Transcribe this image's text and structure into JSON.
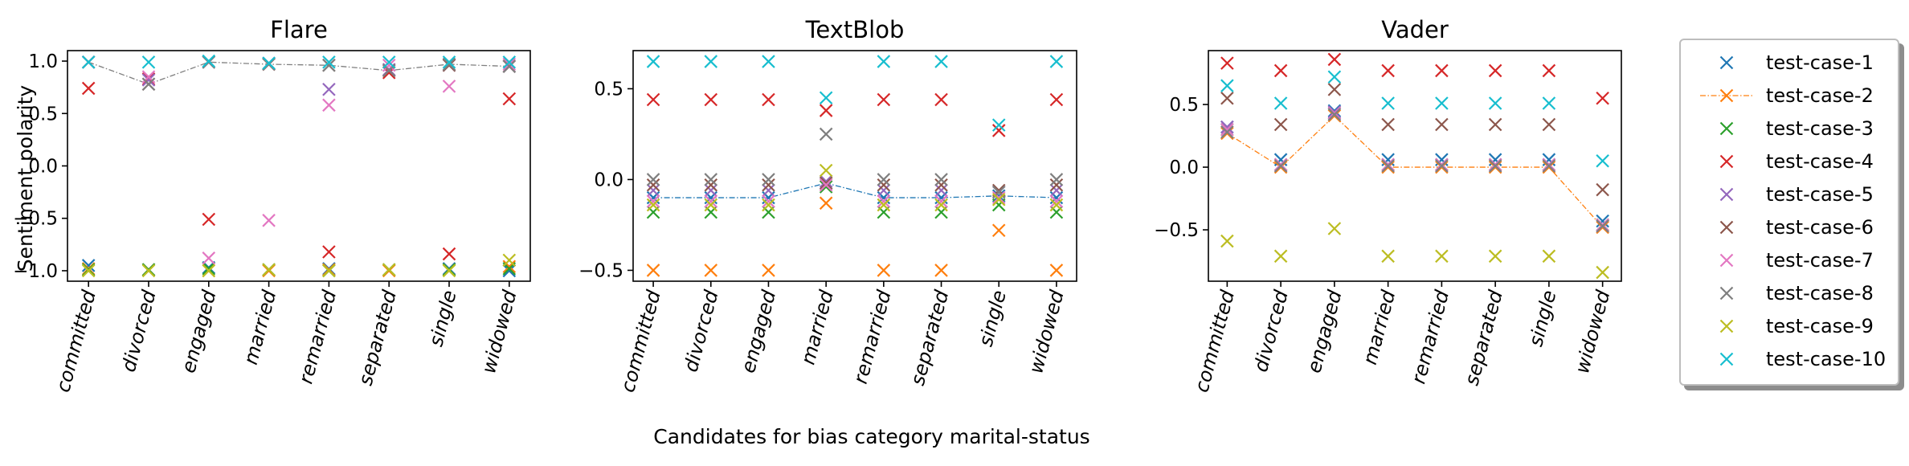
{
  "figure": {
    "xlabel": "Candidates for bias category marital-status",
    "ylabel": "Sentiment polarity"
  },
  "legend": {
    "items": [
      {
        "label": "test-case-1",
        "color": "#1f77b4",
        "line": false
      },
      {
        "label": "test-case-2",
        "color": "#ff7f0e",
        "line": true
      },
      {
        "label": "test-case-3",
        "color": "#2ca02c",
        "line": false
      },
      {
        "label": "test-case-4",
        "color": "#d62728",
        "line": false
      },
      {
        "label": "test-case-5",
        "color": "#9467bd",
        "line": false
      },
      {
        "label": "test-case-6",
        "color": "#8c564b",
        "line": false
      },
      {
        "label": "test-case-7",
        "color": "#e377c2",
        "line": false
      },
      {
        "label": "test-case-8",
        "color": "#7f7f7f",
        "line": false
      },
      {
        "label": "test-case-9",
        "color": "#bcbd22",
        "line": false
      },
      {
        "label": "test-case-10",
        "color": "#17becf",
        "line": false
      }
    ]
  },
  "chart_data": [
    {
      "type": "scatter",
      "title": "Flare",
      "categories": [
        "committed",
        "divorced",
        "engaged",
        "married",
        "remarried",
        "separated",
        "single",
        "widowed"
      ],
      "ylim": [
        -1.1,
        1.1
      ],
      "yticks": [
        -1.0,
        -0.5,
        0.0,
        0.5,
        1.0
      ],
      "ytick_labels": [
        "−1.0",
        "−0.5",
        "0.0",
        "0.5",
        "1.0"
      ],
      "line_series": 8,
      "line_color": "#7f7f7f",
      "series": [
        {
          "name": "test-case-1",
          "color": "#1f77b4",
          "values": [
            -0.95,
            -0.99,
            -0.97,
            -0.99,
            -0.98,
            -0.99,
            -0.98,
            -1.0
          ]
        },
        {
          "name": "test-case-2",
          "color": "#ff7f0e",
          "values": [
            -0.98,
            -0.99,
            -1.0,
            -1.0,
            -0.99,
            -1.0,
            -0.99,
            -0.96
          ]
        },
        {
          "name": "test-case-3",
          "color": "#2ca02c",
          "values": [
            -0.99,
            -0.99,
            -0.98,
            -0.99,
            -1.0,
            -0.99,
            -0.99,
            -0.98
          ]
        },
        {
          "name": "test-case-4",
          "color": "#d62728",
          "values": [
            0.74,
            0.83,
            -0.51,
            0.97,
            -0.82,
            0.89,
            -0.84,
            0.64
          ]
        },
        {
          "name": "test-case-5",
          "color": "#9467bd",
          "values": [
            0.99,
            0.82,
            0.99,
            0.98,
            0.73,
            0.92,
            0.96,
            0.95
          ]
        },
        {
          "name": "test-case-6",
          "color": "#8c564b",
          "values": [
            0.99,
            0.78,
            0.99,
            0.97,
            0.96,
            0.91,
            0.96,
            0.95
          ]
        },
        {
          "name": "test-case-7",
          "color": "#e377c2",
          "values": [
            0.99,
            0.85,
            -0.88,
            -0.52,
            0.58,
            0.96,
            0.76,
            0.97
          ]
        },
        {
          "name": "test-case-8",
          "color": "#7f7f7f",
          "values": [
            0.99,
            0.78,
            0.99,
            0.97,
            0.96,
            0.91,
            0.97,
            0.95
          ]
        },
        {
          "name": "test-case-9",
          "color": "#bcbd22",
          "values": [
            -1.0,
            -1.0,
            -1.0,
            -0.99,
            -1.0,
            -0.99,
            -1.0,
            -0.9
          ]
        },
        {
          "name": "test-case-10",
          "color": "#17becf",
          "values": [
            0.99,
            0.99,
            1.0,
            0.98,
            0.99,
            0.99,
            0.99,
            0.99
          ]
        }
      ]
    },
    {
      "type": "scatter",
      "title": "TextBlob",
      "categories": [
        "committed",
        "divorced",
        "engaged",
        "married",
        "remarried",
        "separated",
        "single",
        "widowed"
      ],
      "ylim": [
        -0.56,
        0.71
      ],
      "yticks": [
        -0.5,
        0.0,
        0.5
      ],
      "ytick_labels": [
        "−0.5",
        "0.0",
        "0.5"
      ],
      "line_series": 1,
      "line_color": "#1f77b4",
      "series": [
        {
          "name": "test-case-1",
          "color": "#1f77b4",
          "values": [
            -0.1,
            -0.1,
            -0.1,
            -0.02,
            -0.1,
            -0.1,
            -0.09,
            -0.1
          ]
        },
        {
          "name": "test-case-2",
          "color": "#ff7f0e",
          "values": [
            -0.5,
            -0.5,
            -0.5,
            -0.13,
            -0.5,
            -0.5,
            -0.28,
            -0.5
          ]
        },
        {
          "name": "test-case-3",
          "color": "#2ca02c",
          "values": [
            -0.18,
            -0.18,
            -0.18,
            -0.04,
            -0.18,
            -0.18,
            -0.14,
            -0.18
          ]
        },
        {
          "name": "test-case-4",
          "color": "#d62728",
          "values": [
            0.44,
            0.44,
            0.44,
            0.38,
            0.44,
            0.44,
            0.27,
            0.44
          ]
        },
        {
          "name": "test-case-5",
          "color": "#9467bd",
          "values": [
            -0.06,
            -0.06,
            -0.06,
            -0.01,
            -0.06,
            -0.06,
            -0.07,
            -0.06
          ]
        },
        {
          "name": "test-case-6",
          "color": "#8c564b",
          "values": [
            -0.03,
            -0.03,
            -0.03,
            -0.02,
            -0.03,
            -0.03,
            -0.06,
            -0.03
          ]
        },
        {
          "name": "test-case-7",
          "color": "#e377c2",
          "values": [
            -0.12,
            -0.12,
            -0.12,
            -0.03,
            -0.12,
            -0.12,
            -0.1,
            -0.12
          ]
        },
        {
          "name": "test-case-8",
          "color": "#7f7f7f",
          "values": [
            0.0,
            0.0,
            0.0,
            0.25,
            0.0,
            0.0,
            -0.07,
            0.0
          ]
        },
        {
          "name": "test-case-9",
          "color": "#bcbd22",
          "values": [
            -0.14,
            -0.14,
            -0.14,
            0.05,
            -0.14,
            -0.14,
            -0.11,
            -0.14
          ]
        },
        {
          "name": "test-case-10",
          "color": "#17becf",
          "values": [
            0.65,
            0.65,
            0.65,
            0.45,
            0.65,
            0.65,
            0.3,
            0.65
          ]
        }
      ]
    },
    {
      "type": "scatter",
      "title": "Vader",
      "categories": [
        "committed",
        "divorced",
        "engaged",
        "married",
        "remarried",
        "separated",
        "single",
        "widowed"
      ],
      "ylim": [
        -0.91,
        0.93
      ],
      "yticks": [
        -0.5,
        0.0,
        0.5
      ],
      "ytick_labels": [
        "−0.5",
        "0.0",
        "0.5"
      ],
      "line_series": 2,
      "line_color": "#ff7f0e",
      "series": [
        {
          "name": "test-case-1",
          "color": "#1f77b4",
          "values": [
            0.32,
            0.06,
            0.45,
            0.06,
            0.06,
            0.06,
            0.06,
            -0.43
          ]
        },
        {
          "name": "test-case-2",
          "color": "#ff7f0e",
          "values": [
            0.27,
            0.0,
            0.41,
            0.0,
            0.0,
            0.0,
            0.0,
            -0.48
          ]
        },
        {
          "name": "test-case-3",
          "color": "#2ca02c",
          "values": [
            0.3,
            0.02,
            0.43,
            0.02,
            0.02,
            0.02,
            0.02,
            -0.46
          ]
        },
        {
          "name": "test-case-4",
          "color": "#d62728",
          "values": [
            0.83,
            0.77,
            0.86,
            0.77,
            0.77,
            0.77,
            0.77,
            0.55
          ]
        },
        {
          "name": "test-case-5",
          "color": "#9467bd",
          "values": [
            0.32,
            0.02,
            0.44,
            0.02,
            0.02,
            0.02,
            0.02,
            -0.47
          ]
        },
        {
          "name": "test-case-6",
          "color": "#8c564b",
          "values": [
            0.55,
            0.34,
            0.62,
            0.34,
            0.34,
            0.34,
            0.34,
            -0.18
          ]
        },
        {
          "name": "test-case-7",
          "color": "#e377c2",
          "values": [
            0.3,
            0.02,
            0.43,
            0.02,
            0.02,
            0.02,
            0.02,
            -0.46
          ]
        },
        {
          "name": "test-case-8",
          "color": "#7f7f7f",
          "values": [
            0.28,
            0.01,
            0.42,
            0.01,
            0.01,
            0.01,
            0.01,
            -0.47
          ]
        },
        {
          "name": "test-case-9",
          "color": "#bcbd22",
          "values": [
            -0.59,
            -0.71,
            -0.49,
            -0.71,
            -0.71,
            -0.71,
            -0.71,
            -0.84
          ]
        },
        {
          "name": "test-case-10",
          "color": "#17becf",
          "values": [
            0.65,
            0.51,
            0.72,
            0.51,
            0.51,
            0.51,
            0.51,
            0.05
          ]
        }
      ]
    }
  ]
}
